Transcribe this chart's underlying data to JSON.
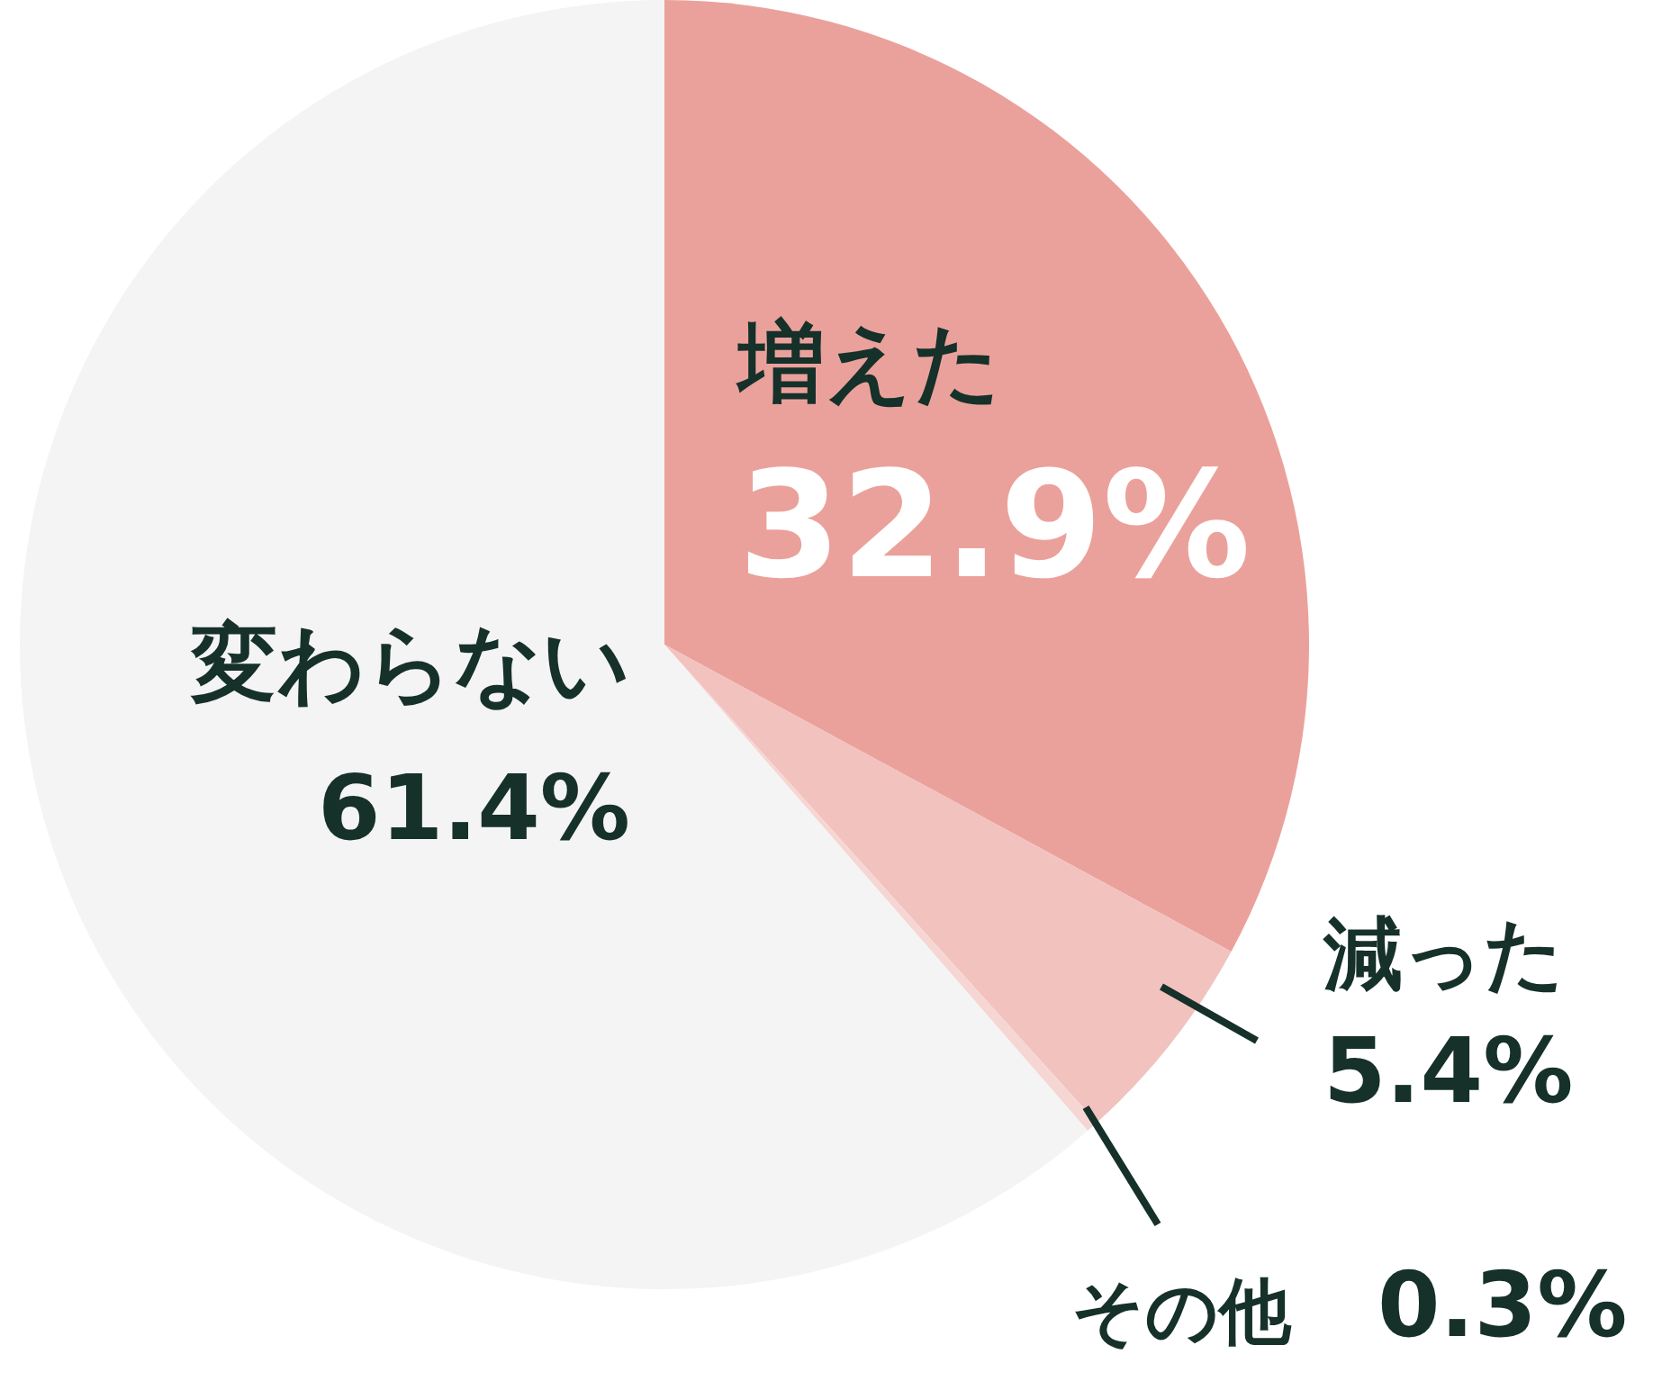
{
  "chart_data": {
    "type": "pie",
    "categories": [
      "増えた",
      "減った",
      "その他",
      "変わらない"
    ],
    "values": [
      32.9,
      5.4,
      0.3,
      61.4
    ],
    "value_labels": [
      "32.9%",
      "5.4%",
      "0.3%",
      "61.4%"
    ],
    "colors": [
      "#eba19b",
      "#f2c2bf",
      "#f6d6d3",
      "#f4f4f4"
    ]
  }
}
